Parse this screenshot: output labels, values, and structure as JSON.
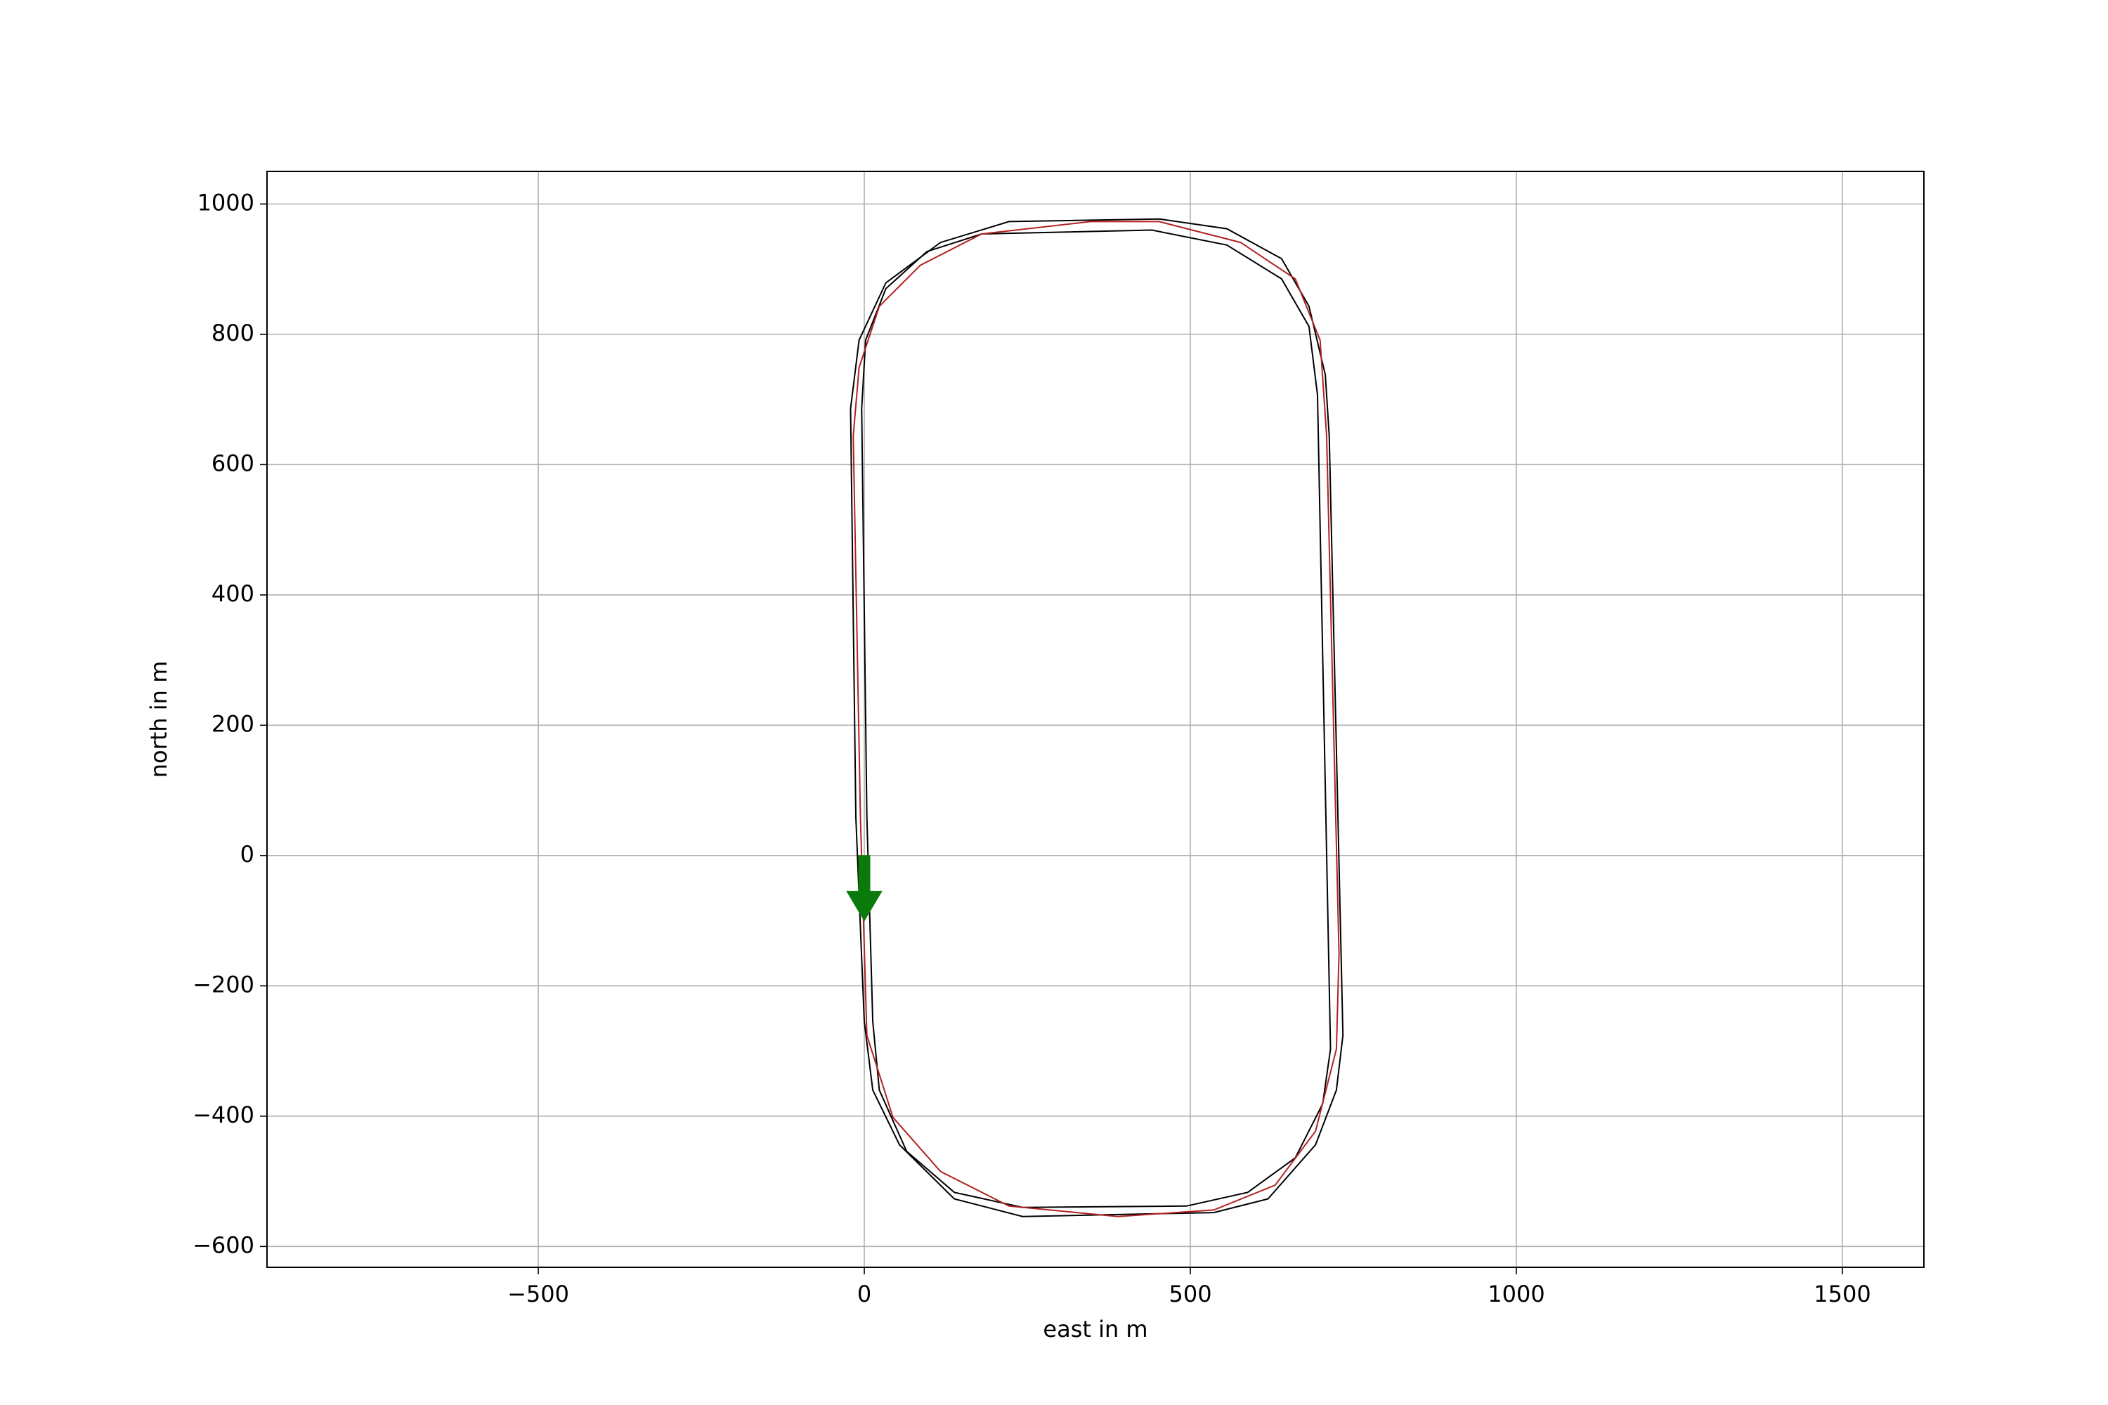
{
  "chart_data": {
    "type": "line",
    "xlabel": "east in m",
    "ylabel": "north in m",
    "xlim": [
      -916,
      1625
    ],
    "ylim": [
      -632,
      1050
    ],
    "xticks": [
      {
        "value": -500,
        "label": "−500"
      },
      0,
      500,
      1000,
      1500
    ],
    "yticks": [
      {
        "value": -600,
        "label": "−600"
      },
      {
        "value": -400,
        "label": "−400"
      },
      {
        "value": -200,
        "label": "−200"
      },
      0,
      200,
      400,
      600,
      800,
      1000
    ],
    "grid": true,
    "series": [
      {
        "color": "#000000",
        "x": [
          -21,
          -8,
          33,
          117,
          222,
          452,
          556,
          640,
          682,
          707,
          713,
          734,
          724,
          692,
          619,
          536,
          243,
          138,
          54,
          13,
          0,
          -13
        ],
        "values": [
          686,
          791,
          879,
          941,
          973,
          977,
          962,
          916,
          843,
          738,
          644,
          -276,
          -360,
          -444,
          -527,
          -548,
          -554,
          -527,
          -444,
          -360,
          -255,
          59
        ]
      },
      {
        "color": "#000000",
        "x": [
          -4,
          2,
          33,
          96,
          180,
          441,
          556,
          640,
          682,
          695,
          715,
          703,
          661,
          588,
          494,
          243,
          138,
          65,
          23,
          13,
          4
        ],
        "values": [
          686,
          791,
          870,
          927,
          954,
          960,
          937,
          885,
          812,
          707,
          -297,
          -381,
          -464,
          -517,
          -538,
          -540,
          -517,
          -454,
          -360,
          -255,
          59
        ]
      },
      {
        "color": "#b22222",
        "x": [
          -17,
          -8,
          23,
          86,
          180,
          347,
          452,
          577,
          661,
          699,
          709,
          728,
          724,
          692,
          630,
          536,
          389,
          222,
          117,
          44,
          4,
          -6
        ],
        "values": [
          644,
          749,
          843,
          906,
          954,
          973,
          973,
          941,
          885,
          791,
          644,
          -151,
          -297,
          -423,
          -506,
          -544,
          -554,
          -538,
          -485,
          -402,
          -276,
          59
        ]
      }
    ],
    "arrow": {
      "x": 0,
      "y": 0,
      "dx": 0,
      "dy": -100,
      "color": "#0a7a0a"
    }
  }
}
